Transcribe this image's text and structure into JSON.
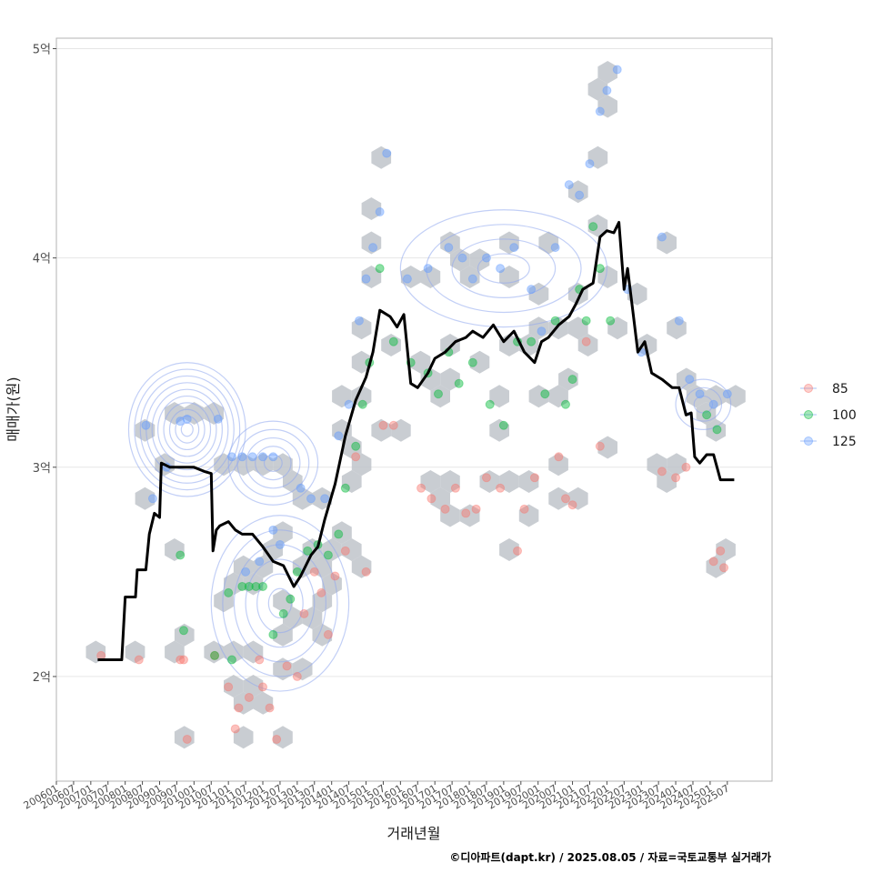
{
  "chart_data": {
    "type": "scatter",
    "title": "",
    "xlabel": "거래년월",
    "ylabel": "매매가(원)",
    "ylim": [
      1.5,
      5.05
    ],
    "yticks": [
      {
        "value": 2,
        "label": "2억"
      },
      {
        "value": 3,
        "label": "3억"
      },
      {
        "value": 4,
        "label": "4억"
      },
      {
        "value": 5,
        "label": "5억"
      }
    ],
    "xlim": [
      2006.0,
      2026.8
    ],
    "xtick_labels": [
      "200601",
      "200607",
      "200701",
      "200707",
      "200801",
      "200807",
      "200901",
      "200907",
      "201001",
      "201007",
      "201101",
      "201107",
      "201201",
      "201207",
      "201301",
      "201307",
      "201401",
      "201407",
      "201501",
      "201507",
      "201601",
      "201607",
      "201701",
      "201707",
      "201801",
      "201807",
      "201901",
      "201907",
      "202001",
      "202007",
      "202101",
      "202107",
      "202201",
      "202207",
      "202301",
      "202307",
      "202401",
      "202407",
      "202501",
      "202507"
    ],
    "legend": {
      "position": "right",
      "entries": [
        {
          "label": "85",
          "color": "#F8766D"
        },
        {
          "label": "100",
          "color": "#00BA38"
        },
        {
          "label": "125",
          "color": "#619CFF"
        }
      ]
    },
    "series": [
      {
        "name": "85",
        "color": "#F8766D",
        "points": [
          [
            2007.3,
            2.1
          ],
          [
            2008.4,
            2.08
          ],
          [
            2009.6,
            2.08
          ],
          [
            2009.7,
            2.08
          ],
          [
            2009.8,
            1.7
          ],
          [
            2010.6,
            2.1
          ],
          [
            2011.0,
            1.95
          ],
          [
            2011.2,
            1.75
          ],
          [
            2011.3,
            1.85
          ],
          [
            2011.6,
            1.9
          ],
          [
            2011.9,
            2.08
          ],
          [
            2012.0,
            1.95
          ],
          [
            2012.2,
            1.85
          ],
          [
            2012.4,
            1.7
          ],
          [
            2012.7,
            2.05
          ],
          [
            2013.0,
            2.0
          ],
          [
            2013.2,
            2.3
          ],
          [
            2013.5,
            2.5
          ],
          [
            2013.7,
            2.4
          ],
          [
            2013.9,
            2.2
          ],
          [
            2014.1,
            2.48
          ],
          [
            2014.4,
            2.6
          ],
          [
            2014.7,
            3.05
          ],
          [
            2015.0,
            2.5
          ],
          [
            2015.5,
            3.2
          ],
          [
            2015.8,
            3.2
          ],
          [
            2016.6,
            2.9
          ],
          [
            2016.9,
            2.85
          ],
          [
            2017.3,
            2.8
          ],
          [
            2017.6,
            2.9
          ],
          [
            2017.9,
            2.78
          ],
          [
            2018.2,
            2.8
          ],
          [
            2018.5,
            2.95
          ],
          [
            2018.9,
            2.9
          ],
          [
            2019.4,
            2.6
          ],
          [
            2019.6,
            2.8
          ],
          [
            2019.9,
            2.95
          ],
          [
            2020.6,
            3.05
          ],
          [
            2020.8,
            2.85
          ],
          [
            2021.0,
            2.82
          ],
          [
            2021.4,
            3.6
          ],
          [
            2021.8,
            3.1
          ],
          [
            2023.6,
            2.98
          ],
          [
            2024.0,
            2.95
          ],
          [
            2024.3,
            3.0
          ],
          [
            2025.1,
            2.55
          ],
          [
            2025.3,
            2.6
          ],
          [
            2025.4,
            2.52
          ]
        ]
      },
      {
        "name": "100",
        "color": "#00BA38",
        "points": [
          [
            2009.6,
            2.58
          ],
          [
            2009.7,
            2.22
          ],
          [
            2010.6,
            2.1
          ],
          [
            2011.0,
            2.4
          ],
          [
            2011.1,
            2.08
          ],
          [
            2011.4,
            2.43
          ],
          [
            2011.6,
            2.43
          ],
          [
            2011.8,
            2.43
          ],
          [
            2012.0,
            2.43
          ],
          [
            2012.3,
            2.2
          ],
          [
            2012.6,
            2.3
          ],
          [
            2012.8,
            2.37
          ],
          [
            2013.0,
            2.5
          ],
          [
            2013.3,
            2.6
          ],
          [
            2013.6,
            2.63
          ],
          [
            2013.9,
            2.58
          ],
          [
            2014.2,
            2.68
          ],
          [
            2014.4,
            2.9
          ],
          [
            2014.7,
            3.1
          ],
          [
            2014.9,
            3.3
          ],
          [
            2015.1,
            3.5
          ],
          [
            2015.4,
            3.95
          ],
          [
            2015.8,
            3.6
          ],
          [
            2016.3,
            3.5
          ],
          [
            2016.8,
            3.45
          ],
          [
            2017.1,
            3.35
          ],
          [
            2017.4,
            3.55
          ],
          [
            2017.7,
            3.4
          ],
          [
            2018.1,
            3.5
          ],
          [
            2018.6,
            3.3
          ],
          [
            2019.0,
            3.2
          ],
          [
            2019.4,
            3.6
          ],
          [
            2019.8,
            3.6
          ],
          [
            2020.2,
            3.35
          ],
          [
            2020.5,
            3.7
          ],
          [
            2020.8,
            3.3
          ],
          [
            2021.0,
            3.42
          ],
          [
            2021.2,
            3.85
          ],
          [
            2021.4,
            3.7
          ],
          [
            2021.6,
            4.15
          ],
          [
            2021.8,
            3.95
          ],
          [
            2022.1,
            3.7
          ],
          [
            2024.9,
            3.25
          ],
          [
            2025.2,
            3.18
          ]
        ]
      },
      {
        "name": "125",
        "color": "#619CFF",
        "points": [
          [
            2008.6,
            3.2
          ],
          [
            2008.8,
            2.85
          ],
          [
            2009.2,
            3.0
          ],
          [
            2009.6,
            3.22
          ],
          [
            2009.8,
            3.23
          ],
          [
            2010.7,
            3.23
          ],
          [
            2011.1,
            3.05
          ],
          [
            2011.4,
            3.05
          ],
          [
            2011.7,
            3.05
          ],
          [
            2012.0,
            3.05
          ],
          [
            2012.3,
            3.05
          ],
          [
            2011.5,
            2.5
          ],
          [
            2011.9,
            2.55
          ],
          [
            2012.3,
            2.7
          ],
          [
            2012.5,
            2.63
          ],
          [
            2013.1,
            2.9
          ],
          [
            2013.4,
            2.85
          ],
          [
            2013.8,
            2.85
          ],
          [
            2014.2,
            3.15
          ],
          [
            2014.5,
            3.3
          ],
          [
            2014.8,
            3.7
          ],
          [
            2015.0,
            3.9
          ],
          [
            2015.2,
            4.05
          ],
          [
            2015.4,
            4.22
          ],
          [
            2015.6,
            4.5
          ],
          [
            2016.2,
            3.9
          ],
          [
            2016.8,
            3.95
          ],
          [
            2017.4,
            4.05
          ],
          [
            2017.8,
            4.0
          ],
          [
            2018.1,
            3.9
          ],
          [
            2018.5,
            4.0
          ],
          [
            2018.9,
            3.95
          ],
          [
            2019.3,
            4.05
          ],
          [
            2019.8,
            3.85
          ],
          [
            2020.1,
            3.65
          ],
          [
            2020.5,
            4.05
          ],
          [
            2020.9,
            4.35
          ],
          [
            2021.2,
            4.3
          ],
          [
            2021.5,
            4.45
          ],
          [
            2021.8,
            4.7
          ],
          [
            2022.0,
            4.8
          ],
          [
            2022.3,
            4.9
          ],
          [
            2022.6,
            3.85
          ],
          [
            2023.0,
            3.55
          ],
          [
            2023.6,
            4.1
          ],
          [
            2024.1,
            3.7
          ],
          [
            2024.4,
            3.42
          ],
          [
            2024.7,
            3.35
          ],
          [
            2025.1,
            3.3
          ],
          [
            2025.5,
            3.35
          ]
        ]
      }
    ],
    "trend_line": {
      "name": "moving-average",
      "color": "#000000",
      "points": [
        [
          2007.2,
          2.08
        ],
        [
          2007.9,
          2.08
        ],
        [
          2008.0,
          2.38
        ],
        [
          2008.3,
          2.38
        ],
        [
          2008.35,
          2.51
        ],
        [
          2008.6,
          2.51
        ],
        [
          2008.7,
          2.68
        ],
        [
          2008.85,
          2.78
        ],
        [
          2009.0,
          2.76
        ],
        [
          2009.05,
          3.02
        ],
        [
          2009.3,
          3.0
        ],
        [
          2009.5,
          3.0
        ],
        [
          2009.8,
          3.0
        ],
        [
          2010.0,
          3.0
        ],
        [
          2010.3,
          2.98
        ],
        [
          2010.5,
          2.97
        ],
        [
          2010.55,
          2.6
        ],
        [
          2010.65,
          2.7
        ],
        [
          2010.75,
          2.72
        ],
        [
          2011.0,
          2.74
        ],
        [
          2011.2,
          2.7
        ],
        [
          2011.4,
          2.68
        ],
        [
          2011.7,
          2.68
        ],
        [
          2012.0,
          2.62
        ],
        [
          2012.3,
          2.55
        ],
        [
          2012.6,
          2.53
        ],
        [
          2012.9,
          2.43
        ],
        [
          2013.1,
          2.48
        ],
        [
          2013.4,
          2.58
        ],
        [
          2013.6,
          2.62
        ],
        [
          2013.8,
          2.75
        ],
        [
          2014.1,
          2.92
        ],
        [
          2014.4,
          3.15
        ],
        [
          2014.7,
          3.32
        ],
        [
          2015.0,
          3.43
        ],
        [
          2015.2,
          3.55
        ],
        [
          2015.4,
          3.75
        ],
        [
          2015.7,
          3.72
        ],
        [
          2015.9,
          3.67
        ],
        [
          2016.1,
          3.73
        ],
        [
          2016.3,
          3.4
        ],
        [
          2016.5,
          3.38
        ],
        [
          2016.8,
          3.45
        ],
        [
          2017.0,
          3.52
        ],
        [
          2017.3,
          3.55
        ],
        [
          2017.6,
          3.6
        ],
        [
          2017.9,
          3.62
        ],
        [
          2018.1,
          3.65
        ],
        [
          2018.4,
          3.62
        ],
        [
          2018.7,
          3.68
        ],
        [
          2019.0,
          3.6
        ],
        [
          2019.3,
          3.65
        ],
        [
          2019.6,
          3.55
        ],
        [
          2019.9,
          3.5
        ],
        [
          2020.1,
          3.6
        ],
        [
          2020.3,
          3.62
        ],
        [
          2020.6,
          3.68
        ],
        [
          2020.9,
          3.72
        ],
        [
          2021.1,
          3.78
        ],
        [
          2021.3,
          3.85
        ],
        [
          2021.6,
          3.88
        ],
        [
          2021.8,
          4.1
        ],
        [
          2022.0,
          4.13
        ],
        [
          2022.2,
          4.12
        ],
        [
          2022.35,
          4.17
        ],
        [
          2022.5,
          3.85
        ],
        [
          2022.6,
          3.95
        ],
        [
          2022.75,
          3.75
        ],
        [
          2022.9,
          3.55
        ],
        [
          2023.1,
          3.6
        ],
        [
          2023.3,
          3.45
        ],
        [
          2023.6,
          3.42
        ],
        [
          2023.9,
          3.38
        ],
        [
          2024.1,
          3.38
        ],
        [
          2024.3,
          3.25
        ],
        [
          2024.45,
          3.26
        ],
        [
          2024.55,
          3.05
        ],
        [
          2024.7,
          3.02
        ],
        [
          2024.9,
          3.06
        ],
        [
          2025.1,
          3.06
        ],
        [
          2025.3,
          2.94
        ],
        [
          2025.7,
          2.94
        ]
      ]
    },
    "caption": "©디아파트(dapt.kr) / 2025.08.05 / 자료=국토교통부 실거래가"
  }
}
